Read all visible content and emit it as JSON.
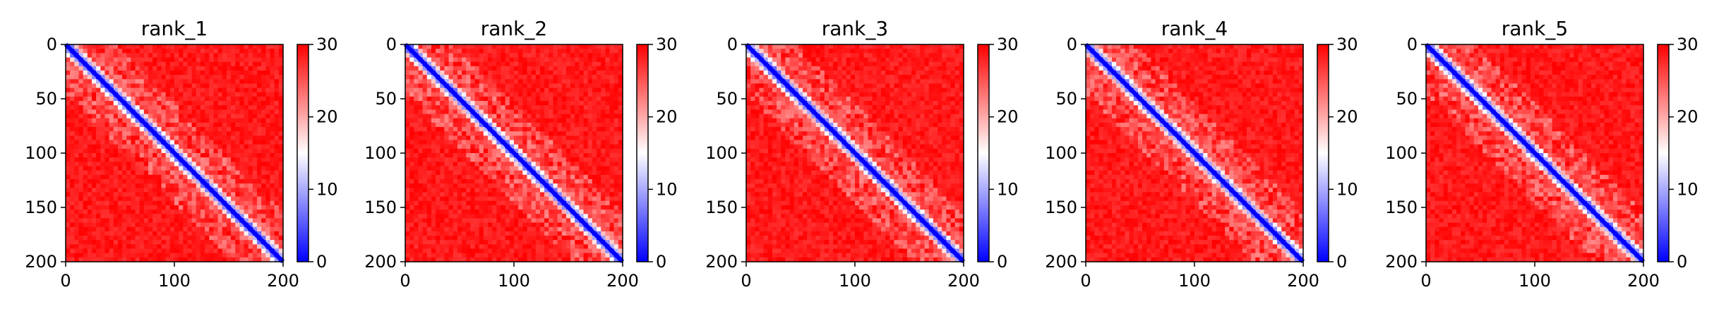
{
  "figure": {
    "panels": [
      {
        "title": "rank_1"
      },
      {
        "title": "rank_2"
      },
      {
        "title": "rank_3"
      },
      {
        "title": "rank_4"
      },
      {
        "title": "rank_5"
      }
    ]
  },
  "chart_data": [
    {
      "type": "heatmap",
      "title": "rank_1",
      "xlabel": "",
      "ylabel": "",
      "xlim": [
        0,
        200
      ],
      "ylim": [
        200,
        0
      ],
      "xticks": [
        0,
        100,
        200
      ],
      "yticks": [
        0,
        50,
        100,
        150,
        200
      ],
      "colorbar": {
        "min": 0,
        "max": 30,
        "ticks": [
          0,
          10,
          20,
          30
        ],
        "colormap": "bwr"
      },
      "description_values": {
        "diagonal_value": 0,
        "off_diagonal_value": 30,
        "diagonal_band_width": 6
      },
      "colors": {
        "low": "#0000ff",
        "mid": "#ffffff",
        "high": "#ff0000"
      }
    },
    {
      "type": "heatmap",
      "title": "rank_2",
      "xlabel": "",
      "ylabel": "",
      "xlim": [
        0,
        200
      ],
      "ylim": [
        200,
        0
      ],
      "xticks": [
        0,
        100,
        200
      ],
      "yticks": [
        0,
        50,
        100,
        150,
        200
      ],
      "colorbar": {
        "min": 0,
        "max": 30,
        "ticks": [
          0,
          10,
          20,
          30
        ],
        "colormap": "bwr"
      },
      "description_values": {
        "diagonal_value": 0,
        "off_diagonal_value": 30,
        "diagonal_band_width": 6
      },
      "colors": {
        "low": "#0000ff",
        "mid": "#ffffff",
        "high": "#ff0000"
      }
    },
    {
      "type": "heatmap",
      "title": "rank_3",
      "xlabel": "",
      "ylabel": "",
      "xlim": [
        0,
        200
      ],
      "ylim": [
        200,
        0
      ],
      "xticks": [
        0,
        100,
        200
      ],
      "yticks": [
        0,
        50,
        100,
        150,
        200
      ],
      "colorbar": {
        "min": 0,
        "max": 30,
        "ticks": [
          0,
          10,
          20,
          30
        ],
        "colormap": "bwr"
      },
      "description_values": {
        "diagonal_value": 0,
        "off_diagonal_value": 30,
        "diagonal_band_width": 6
      },
      "colors": {
        "low": "#0000ff",
        "mid": "#ffffff",
        "high": "#ff0000"
      }
    },
    {
      "type": "heatmap",
      "title": "rank_4",
      "xlabel": "",
      "ylabel": "",
      "xlim": [
        0,
        200
      ],
      "ylim": [
        200,
        0
      ],
      "xticks": [
        0,
        100,
        200
      ],
      "yticks": [
        0,
        50,
        100,
        150,
        200
      ],
      "colorbar": {
        "min": 0,
        "max": 30,
        "ticks": [
          0,
          10,
          20,
          30
        ],
        "colormap": "bwr"
      },
      "description_values": {
        "diagonal_value": 0,
        "off_diagonal_value": 30,
        "diagonal_band_width": 6
      },
      "colors": {
        "low": "#0000ff",
        "mid": "#ffffff",
        "high": "#ff0000"
      }
    },
    {
      "type": "heatmap",
      "title": "rank_5",
      "xlabel": "",
      "ylabel": "",
      "xlim": [
        0,
        200
      ],
      "ylim": [
        200,
        0
      ],
      "xticks": [
        0,
        100,
        200
      ],
      "yticks": [
        0,
        50,
        100,
        150,
        200
      ],
      "colorbar": {
        "min": 0,
        "max": 30,
        "ticks": [
          0,
          10,
          20,
          30
        ],
        "colormap": "bwr"
      },
      "description_values": {
        "diagonal_value": 0,
        "off_diagonal_value": 30,
        "diagonal_band_width": 6
      },
      "colors": {
        "low": "#0000ff",
        "mid": "#ffffff",
        "high": "#ff0000"
      }
    }
  ]
}
